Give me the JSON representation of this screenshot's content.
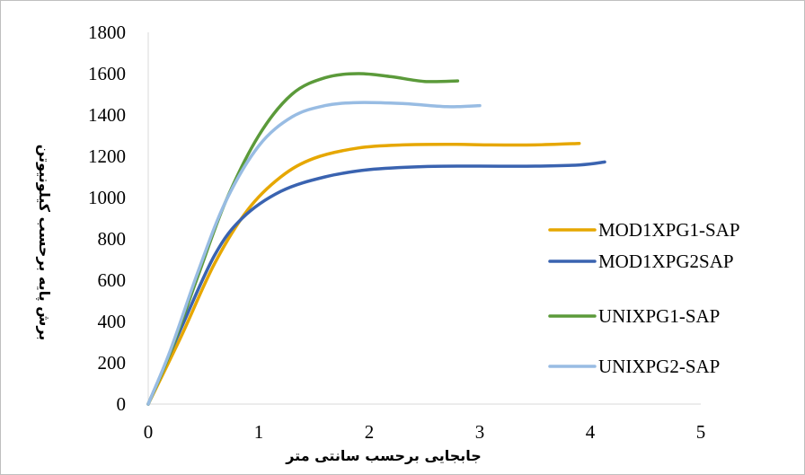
{
  "chart_data": {
    "type": "line",
    "title": "",
    "xlabel": "جابجایی برحسب سانتی متر",
    "ylabel": "برش پایه برحسب کیلونیوتن",
    "xlim": [
      0,
      5
    ],
    "ylim": [
      0,
      1800
    ],
    "x_ticks": [
      "0",
      "1",
      "2",
      "3",
      "4",
      "5"
    ],
    "y_ticks": [
      "0",
      "200",
      "400",
      "600",
      "800",
      "1000",
      "1200",
      "1400",
      "1600",
      "1800"
    ],
    "grid": false,
    "legend_position": "right",
    "series": [
      {
        "name": "MOD1XPG1-SAP",
        "color": "#E6A700",
        "points": [
          [
            0,
            0
          ],
          [
            0.3,
            330
          ],
          [
            0.6,
            680
          ],
          [
            0.9,
            940
          ],
          [
            1.2,
            1100
          ],
          [
            1.5,
            1190
          ],
          [
            1.9,
            1240
          ],
          [
            2.3,
            1255
          ],
          [
            2.7,
            1258
          ],
          [
            3.1,
            1255
          ],
          [
            3.5,
            1255
          ],
          [
            3.9,
            1262
          ]
        ]
      },
      {
        "name": "MOD1XPG2SAP",
        "color": "#3A63B0",
        "points": [
          [
            0,
            0
          ],
          [
            0.3,
            370
          ],
          [
            0.6,
            720
          ],
          [
            0.85,
            900
          ],
          [
            1.2,
            1030
          ],
          [
            1.6,
            1100
          ],
          [
            2.0,
            1135
          ],
          [
            2.5,
            1150
          ],
          [
            3.0,
            1152
          ],
          [
            3.5,
            1152
          ],
          [
            3.9,
            1158
          ],
          [
            4.13,
            1172
          ]
        ]
      },
      {
        "name": "UNIXPG1-SAP",
        "color": "#5B9A3A",
        "points": [
          [
            0,
            0
          ],
          [
            0.2,
            250
          ],
          [
            0.45,
            620
          ],
          [
            0.7,
            980
          ],
          [
            1.0,
            1300
          ],
          [
            1.3,
            1500
          ],
          [
            1.6,
            1580
          ],
          [
            1.9,
            1600
          ],
          [
            2.2,
            1585
          ],
          [
            2.5,
            1562
          ],
          [
            2.8,
            1565
          ]
        ]
      },
      {
        "name": "UNIXPG2-SAP",
        "color": "#98BCE3",
        "points": [
          [
            0,
            0
          ],
          [
            0.2,
            260
          ],
          [
            0.45,
            640
          ],
          [
            0.7,
            980
          ],
          [
            1.0,
            1250
          ],
          [
            1.3,
            1390
          ],
          [
            1.6,
            1445
          ],
          [
            1.9,
            1460
          ],
          [
            2.3,
            1455
          ],
          [
            2.7,
            1440
          ],
          [
            3.0,
            1445
          ]
        ]
      }
    ]
  }
}
